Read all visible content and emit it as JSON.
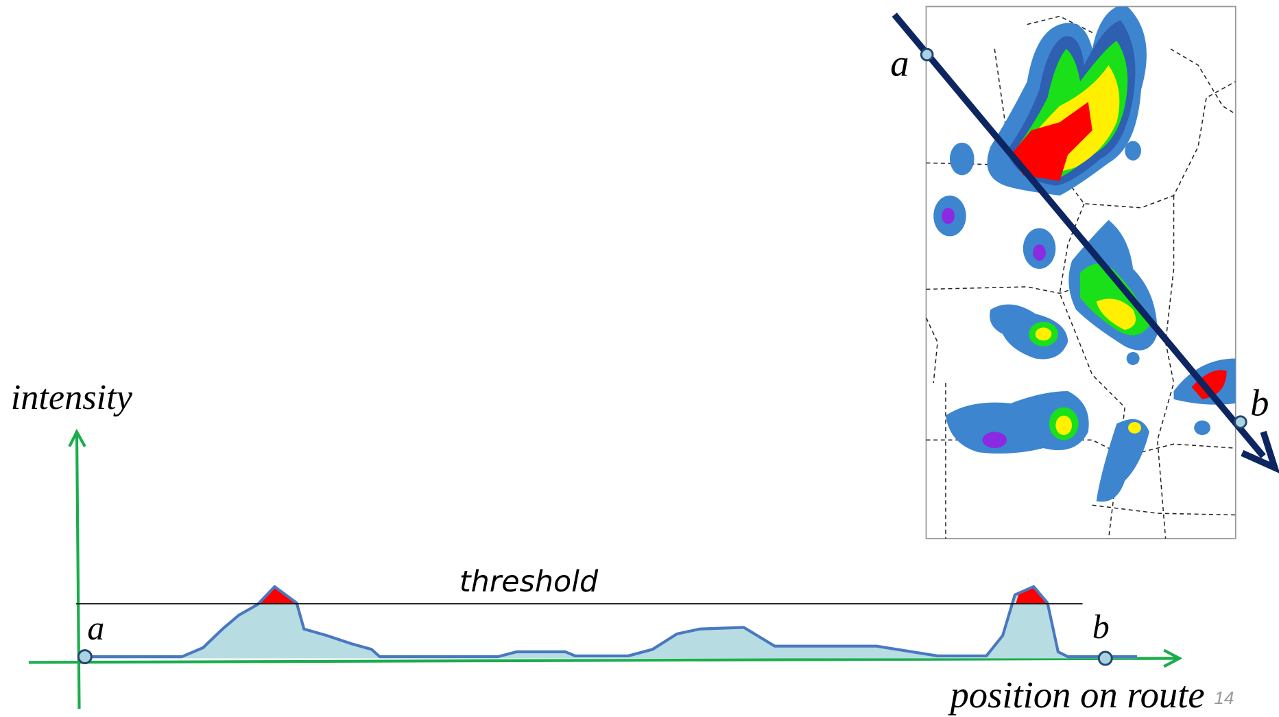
{
  "map": {
    "start_label": "a",
    "end_label": "b"
  },
  "profile": {
    "y_axis_label": "intensity",
    "threshold_label": "threshold",
    "start_label": "a",
    "end_label": "b",
    "x_axis_label": "position on route"
  },
  "page_number": "14"
}
